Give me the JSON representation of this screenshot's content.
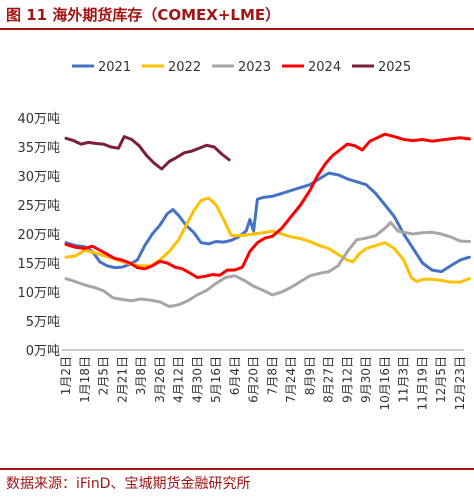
{
  "title": "图 11 海外期货库存（COMEX+LME）",
  "source": "数据来源：iFinD、宝城期货金融研究所",
  "colors": {
    "title": "#a31515",
    "s2021": "#4472c4",
    "s2022": "#ffc000",
    "s2023": "#a6a6a6",
    "s2024": "#ff0000",
    "s2025": "#7b1f3a"
  },
  "chart_data": {
    "type": "line",
    "title": "",
    "xlabel": "",
    "ylabel": "",
    "ylim": [
      0,
      40
    ],
    "y_ticks": [
      "0万吨",
      "5万吨",
      "10万吨",
      "15万吨",
      "20万吨",
      "25万吨",
      "30万吨",
      "35万吨",
      "40万吨"
    ],
    "x_labels": [
      "1月2日",
      "1月18日",
      "2月5日",
      "2月21日",
      "3月8日",
      "3月26日",
      "4月12日",
      "4月30日",
      "5月16日",
      "6月4日",
      "6月20日",
      "7月8日",
      "7月24日",
      "8月9日",
      "8月27日",
      "9月12日",
      "9月30日",
      "10月16日",
      "11月3日",
      "11月19日",
      "12月5日",
      "12月23日"
    ],
    "grid": false,
    "legend_position": "top",
    "series": [
      {
        "name": "2021",
        "color_key": "s2021",
        "points": [
          [
            0,
            18.5
          ],
          [
            0.5,
            18
          ],
          [
            1,
            17.8
          ],
          [
            1.4,
            17
          ],
          [
            1.8,
            15.2
          ],
          [
            2.2,
            14.5
          ],
          [
            2.6,
            14.2
          ],
          [
            3,
            14.3
          ],
          [
            3.4,
            14.8
          ],
          [
            3.8,
            15.5
          ],
          [
            4.2,
            18
          ],
          [
            4.6,
            20
          ],
          [
            5,
            21.5
          ],
          [
            5.4,
            23.5
          ],
          [
            5.7,
            24.2
          ],
          [
            6,
            23.2
          ],
          [
            6.4,
            21.5
          ],
          [
            6.8,
            20.3
          ],
          [
            7.2,
            18.5
          ],
          [
            7.6,
            18.3
          ],
          [
            8,
            18.7
          ],
          [
            8.4,
            18.6
          ],
          [
            8.8,
            18.9
          ],
          [
            9.2,
            19.5
          ],
          [
            9.6,
            20.5
          ],
          [
            9.8,
            22.5
          ],
          [
            10,
            20.5
          ],
          [
            10.2,
            26
          ],
          [
            10.5,
            26.3
          ],
          [
            11,
            26.5
          ],
          [
            11.5,
            27
          ],
          [
            12,
            27.5
          ],
          [
            12.5,
            28
          ],
          [
            13,
            28.5
          ],
          [
            13.5,
            29.5
          ],
          [
            14,
            30.5
          ],
          [
            14.5,
            30.2
          ],
          [
            15,
            29.5
          ],
          [
            15.5,
            29
          ],
          [
            16,
            28.5
          ],
          [
            16.5,
            27
          ],
          [
            17,
            25
          ],
          [
            17.5,
            23
          ],
          [
            18,
            20
          ],
          [
            18.5,
            17.5
          ],
          [
            19,
            15
          ],
          [
            19.5,
            13.8
          ],
          [
            20,
            13.5
          ],
          [
            20.5,
            14.5
          ],
          [
            21,
            15.5
          ],
          [
            21.5,
            16
          ]
        ]
      },
      {
        "name": "2022",
        "color_key": "s2022",
        "points": [
          [
            0,
            16
          ],
          [
            0.5,
            16.2
          ],
          [
            1,
            17.2
          ],
          [
            1.5,
            16.8
          ],
          [
            2,
            16.3
          ],
          [
            2.5,
            15.8
          ],
          [
            3,
            15.2
          ],
          [
            3.5,
            14.8
          ],
          [
            4,
            14.5
          ],
          [
            4.5,
            14.5
          ],
          [
            5,
            15.5
          ],
          [
            5.5,
            17
          ],
          [
            6,
            19
          ],
          [
            6.4,
            21.5
          ],
          [
            6.8,
            24
          ],
          [
            7.2,
            25.8
          ],
          [
            7.6,
            26.2
          ],
          [
            8,
            25
          ],
          [
            8.4,
            22.5
          ],
          [
            8.8,
            19.8
          ],
          [
            9,
            19.7
          ],
          [
            9.5,
            19.8
          ],
          [
            10,
            20
          ],
          [
            10.5,
            20.2
          ],
          [
            11,
            20.5
          ],
          [
            11.5,
            20
          ],
          [
            12,
            19.5
          ],
          [
            12.5,
            19.2
          ],
          [
            13,
            18.7
          ],
          [
            13.5,
            18
          ],
          [
            14,
            17.5
          ],
          [
            14.5,
            16.5
          ],
          [
            15,
            15.5
          ],
          [
            15.3,
            15.2
          ],
          [
            15.6,
            16.5
          ],
          [
            16,
            17.5
          ],
          [
            16.5,
            18
          ],
          [
            17,
            18.5
          ],
          [
            17.5,
            17.5
          ],
          [
            18,
            15.5
          ],
          [
            18.4,
            12.5
          ],
          [
            18.7,
            11.8
          ],
          [
            19,
            12.2
          ],
          [
            19.5,
            12.2
          ],
          [
            20,
            12
          ],
          [
            20.5,
            11.7
          ],
          [
            21,
            11.7
          ],
          [
            21.5,
            12.3
          ]
        ]
      },
      {
        "name": "2023",
        "color_key": "s2023",
        "points": [
          [
            0,
            12.3
          ],
          [
            0.5,
            11.8
          ],
          [
            1,
            11.2
          ],
          [
            1.5,
            10.8
          ],
          [
            2,
            10.2
          ],
          [
            2.5,
            9
          ],
          [
            3,
            8.7
          ],
          [
            3.5,
            8.5
          ],
          [
            4,
            8.8
          ],
          [
            4.5,
            8.6
          ],
          [
            5,
            8.3
          ],
          [
            5.5,
            7.5
          ],
          [
            6,
            7.8
          ],
          [
            6.5,
            8.5
          ],
          [
            7,
            9.5
          ],
          [
            7.5,
            10.3
          ],
          [
            8,
            11.5
          ],
          [
            8.5,
            12.5
          ],
          [
            9,
            12.8
          ],
          [
            9.5,
            12
          ],
          [
            10,
            11
          ],
          [
            10.5,
            10.3
          ],
          [
            11,
            9.5
          ],
          [
            11.5,
            10
          ],
          [
            12,
            10.8
          ],
          [
            12.5,
            11.8
          ],
          [
            13,
            12.8
          ],
          [
            13.5,
            13.2
          ],
          [
            14,
            13.5
          ],
          [
            14.5,
            14.5
          ],
          [
            15,
            17
          ],
          [
            15.5,
            19
          ],
          [
            16,
            19.3
          ],
          [
            16.5,
            19.7
          ],
          [
            17,
            21
          ],
          [
            17.3,
            22
          ],
          [
            17.7,
            20.5
          ],
          [
            18,
            20.3
          ],
          [
            18.5,
            20
          ],
          [
            19,
            20.2
          ],
          [
            19.5,
            20.3
          ],
          [
            20,
            20
          ],
          [
            20.5,
            19.5
          ],
          [
            21,
            18.8
          ],
          [
            21.5,
            18.7
          ]
        ]
      },
      {
        "name": "2024",
        "color_key": "s2024",
        "points": [
          [
            0,
            18.2
          ],
          [
            0.5,
            17.7
          ],
          [
            1,
            17.5
          ],
          [
            1.4,
            17.9
          ],
          [
            1.8,
            17.2
          ],
          [
            2.2,
            16.5
          ],
          [
            2.6,
            15.8
          ],
          [
            3,
            15.5
          ],
          [
            3.4,
            15
          ],
          [
            3.8,
            14.2
          ],
          [
            4.2,
            14
          ],
          [
            4.6,
            14.5
          ],
          [
            5,
            15.3
          ],
          [
            5.4,
            15
          ],
          [
            5.8,
            14.3
          ],
          [
            6.2,
            14
          ],
          [
            6.6,
            13.3
          ],
          [
            7,
            12.5
          ],
          [
            7.4,
            12.7
          ],
          [
            7.8,
            13
          ],
          [
            8.2,
            12.9
          ],
          [
            8.6,
            13.8
          ],
          [
            9,
            13.8
          ],
          [
            9.4,
            14.3
          ],
          [
            9.8,
            17
          ],
          [
            10.2,
            18.5
          ],
          [
            10.6,
            19.3
          ],
          [
            11,
            19.6
          ],
          [
            11.5,
            21
          ],
          [
            12,
            23
          ],
          [
            12.5,
            25
          ],
          [
            13,
            27.5
          ],
          [
            13.4,
            30
          ],
          [
            13.8,
            32
          ],
          [
            14.2,
            33.5
          ],
          [
            14.6,
            34.5
          ],
          [
            15,
            35.5
          ],
          [
            15.4,
            35.2
          ],
          [
            15.8,
            34.5
          ],
          [
            16.2,
            36
          ],
          [
            16.6,
            36.6
          ],
          [
            17,
            37.2
          ],
          [
            17.5,
            36.8
          ],
          [
            18,
            36.3
          ],
          [
            18.5,
            36.1
          ],
          [
            19,
            36.3
          ],
          [
            19.5,
            36
          ],
          [
            20,
            36.2
          ],
          [
            20.5,
            36.4
          ],
          [
            21,
            36.6
          ],
          [
            21.5,
            36.4
          ]
        ]
      },
      {
        "name": "2025",
        "color_key": "s2025",
        "points": [
          [
            0,
            36.5
          ],
          [
            0.4,
            36.1
          ],
          [
            0.8,
            35.5
          ],
          [
            1.2,
            35.8
          ],
          [
            1.6,
            35.6
          ],
          [
            2,
            35.5
          ],
          [
            2.4,
            35
          ],
          [
            2.8,
            34.8
          ],
          [
            3.1,
            36.8
          ],
          [
            3.5,
            36.3
          ],
          [
            3.9,
            35.2
          ],
          [
            4.3,
            33.5
          ],
          [
            4.7,
            32.2
          ],
          [
            5.1,
            31.2
          ],
          [
            5.5,
            32.5
          ],
          [
            5.9,
            33.2
          ],
          [
            6.3,
            34
          ],
          [
            6.7,
            34.3
          ],
          [
            7.1,
            34.8
          ],
          [
            7.5,
            35.3
          ],
          [
            7.9,
            35
          ],
          [
            8.3,
            33.8
          ],
          [
            8.7,
            32.8
          ]
        ]
      }
    ]
  }
}
